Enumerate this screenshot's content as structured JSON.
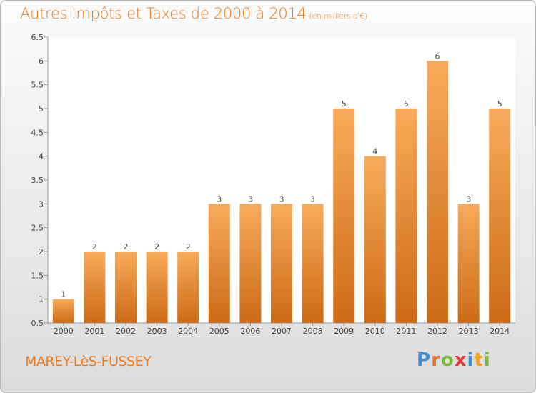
{
  "header": {
    "title": "Autres Impôts et Taxes de 2000 à 2014",
    "subtitle": "(en milliers d'€)"
  },
  "footer": {
    "commune": "MAREY-LèS-FUSSEY",
    "logo": {
      "p": "P",
      "r": "r",
      "o": "o",
      "x": "x",
      "i1": "i",
      "t": "t",
      "i2": "i"
    }
  },
  "colors": {
    "bar_top": "#f8ab5a",
    "bar_bottom": "#cc6a16",
    "text_accent": "#ee7a1e"
  },
  "chart_data": {
    "type": "bar",
    "categories": [
      "2000",
      "2001",
      "2002",
      "2003",
      "2004",
      "2005",
      "2006",
      "2007",
      "2008",
      "2009",
      "2010",
      "2011",
      "2012",
      "2013",
      "2014"
    ],
    "values": [
      1,
      2,
      2,
      2,
      2,
      3,
      3,
      3,
      3,
      5,
      4,
      5,
      6,
      3,
      5
    ],
    "data_labels": [
      "1",
      "2",
      "2",
      "2",
      "2",
      "3",
      "3",
      "3",
      "3",
      "5",
      "4",
      "5",
      "6",
      "3",
      "5"
    ],
    "yticks": [
      "0.5",
      "1",
      "1.5",
      "2",
      "2.5",
      "3",
      "3.5",
      "4",
      "4.5",
      "5",
      "5.5",
      "6",
      "6.5"
    ],
    "ylim": [
      0.5,
      6.5
    ],
    "grid": false,
    "legend": "none"
  }
}
